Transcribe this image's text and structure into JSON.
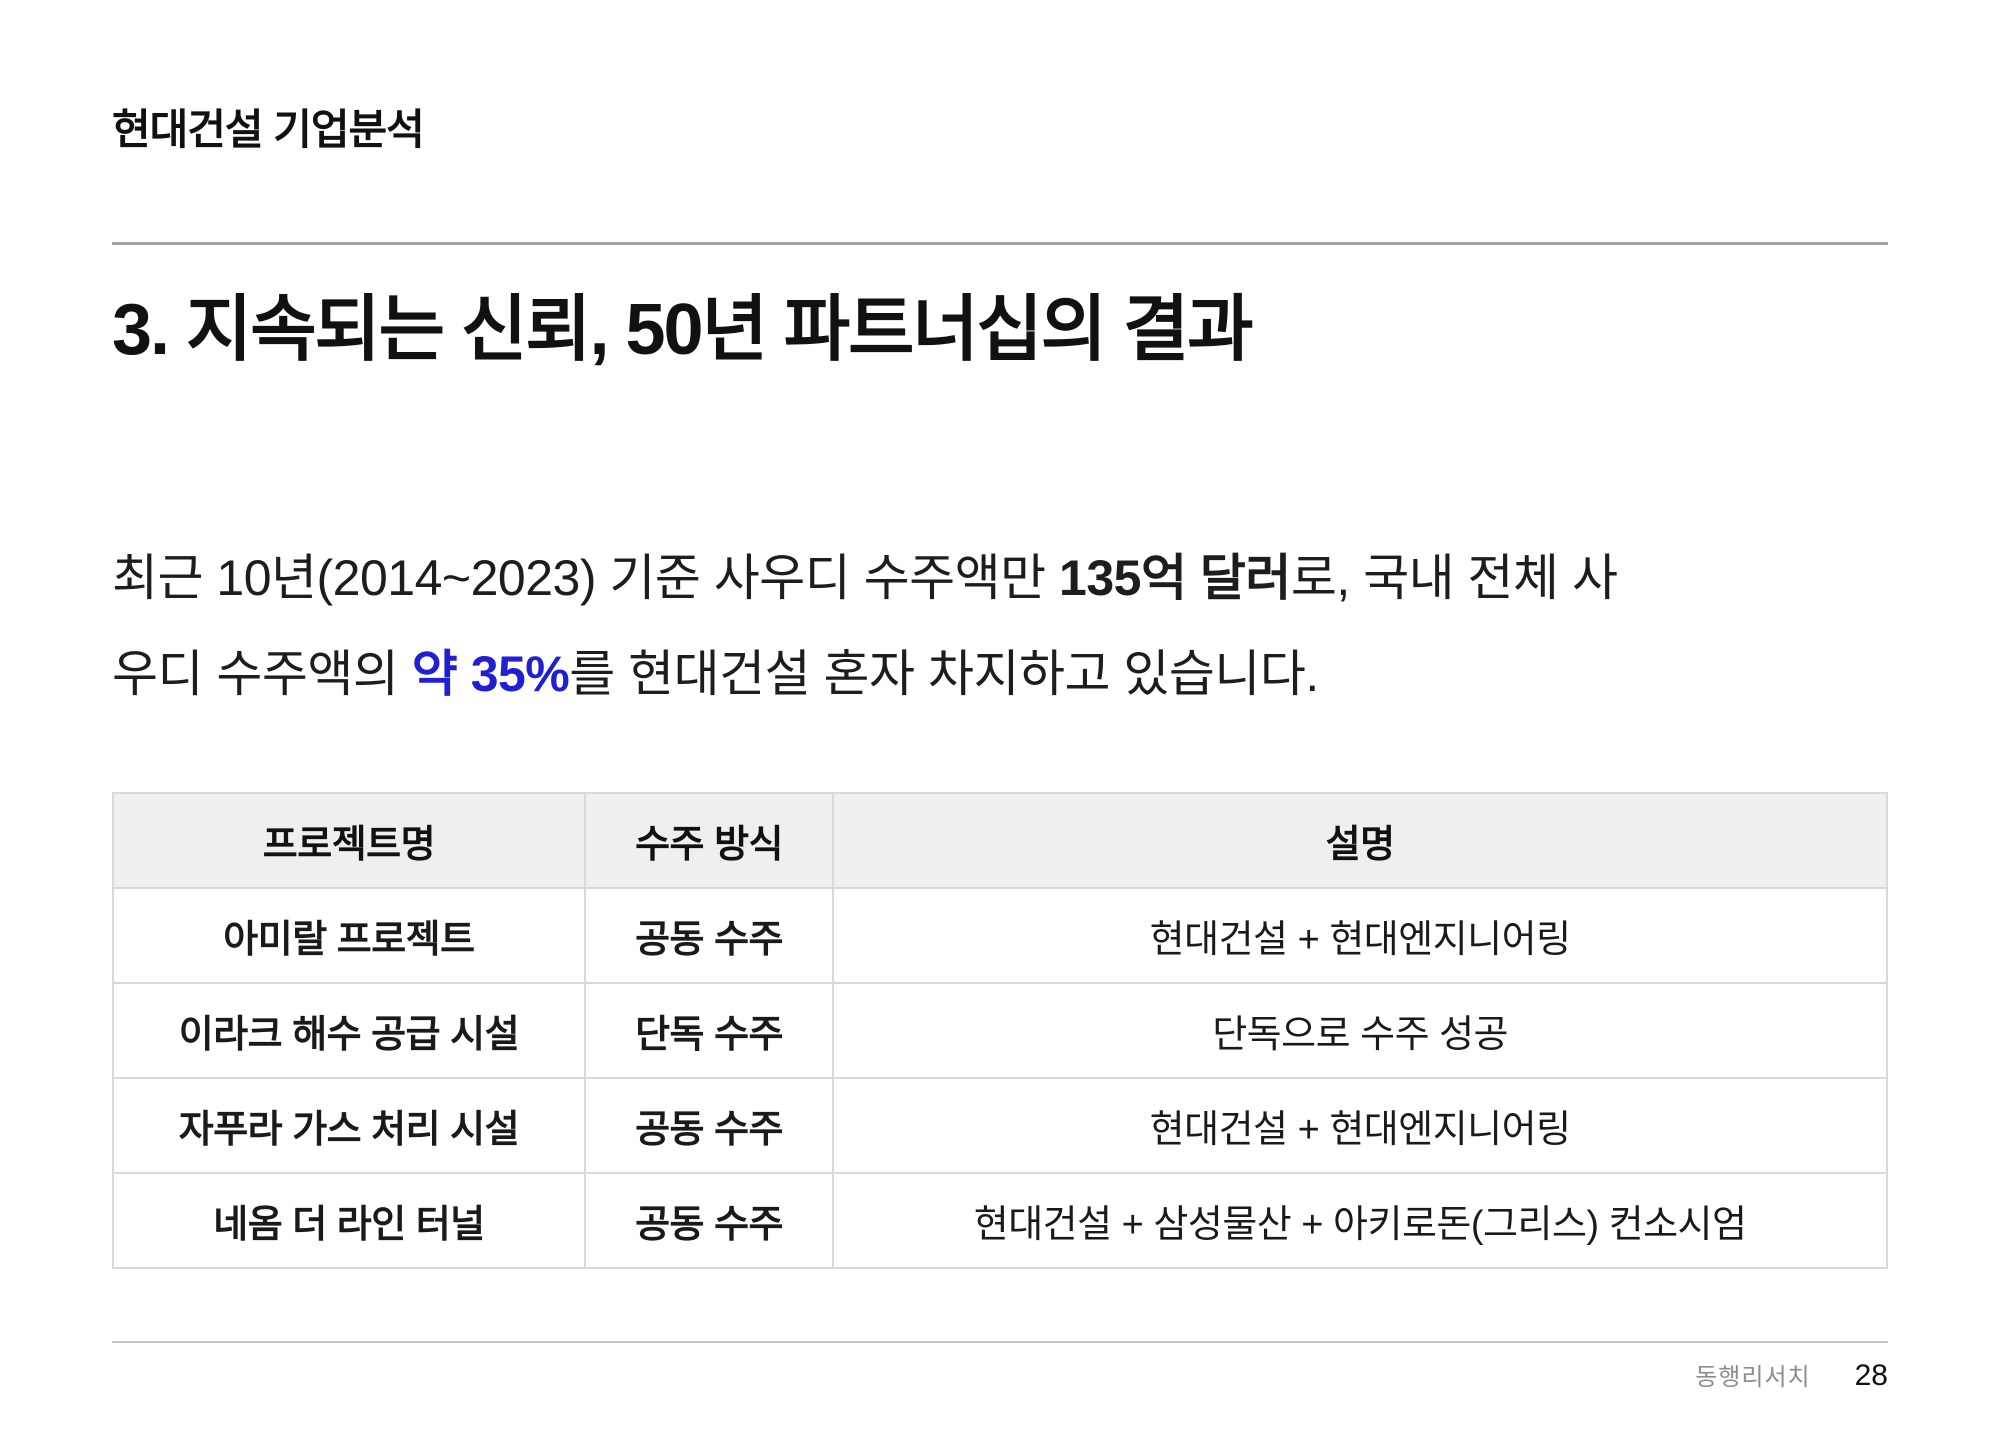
{
  "kicker": "현대건설 기업분석",
  "heading": "3. 지속되는 신뢰, 50년 파트너십의 결과",
  "paragraph": {
    "line1": {
      "lead": "최근 10년(2014~2023) 기준 사우디 수주액만 ",
      "bold_amount": "135억 달러",
      "tail": "로, 국내 전체 사"
    },
    "line2": {
      "lead": "우디 수주액의 ",
      "highlight": "약 35%",
      "tail": "를 현대건설 혼자 차지하고 있습니다."
    }
  },
  "table": {
    "headers": [
      "프로젝트명",
      "수주 방식",
      "설명"
    ],
    "rows": [
      {
        "project": "아미랄 프로젝트",
        "method": "공동 수주",
        "description": "현대건설 + 현대엔지니어링"
      },
      {
        "project": "이라크 해수 공급 시설",
        "method": "단독 수주",
        "description": "단독으로 수주 성공"
      },
      {
        "project": "자푸라 가스 처리 시설",
        "method": "공동 수주",
        "description": "현대건설 + 현대엔지니어링"
      },
      {
        "project": "네옴 더 라인 터널",
        "method": "공동 수주",
        "description": "현대건설 + 삼성물산 + 아키로돈(그리스) 컨소시엄"
      }
    ]
  },
  "footer": {
    "brand": "동행리서치",
    "page_number": "28"
  },
  "colors": {
    "highlight_blue": "#211fd4",
    "table_header_bg": "#efefef",
    "divider_gray": "#a3a3a3"
  }
}
